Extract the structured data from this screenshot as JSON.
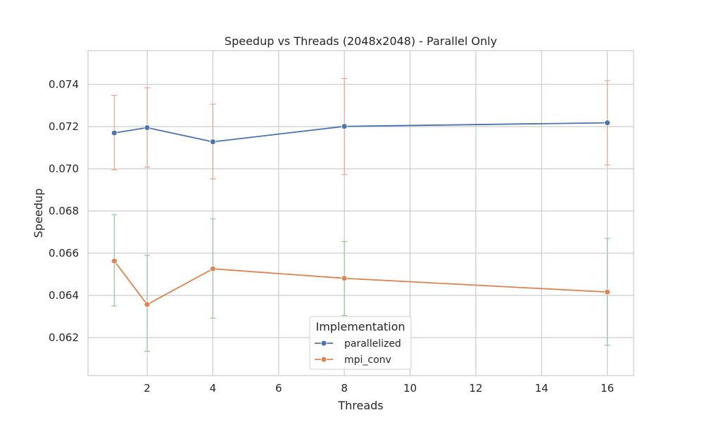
{
  "chart_data": {
    "type": "line",
    "title": "Speedup vs Threads (2048x2048) - Parallel Only",
    "xlabel": "Threads",
    "ylabel": "Speedup",
    "x": [
      1,
      2,
      4,
      8,
      16
    ],
    "xlim": [
      0.2,
      16.8
    ],
    "ylim": [
      0.0602,
      0.0756
    ],
    "xticks": [
      2,
      4,
      6,
      8,
      10,
      12,
      14,
      16
    ],
    "yticks": [
      0.062,
      0.064,
      0.066,
      0.068,
      0.07,
      0.072,
      0.074
    ],
    "ytick_labels": [
      "0.062",
      "0.064",
      "0.066",
      "0.068",
      "0.070",
      "0.072",
      "0.074"
    ],
    "grid": true,
    "legend": {
      "title": "Implementation",
      "position": "bottom-center"
    },
    "series": [
      {
        "name": "parallelized",
        "color": "#4c72b0",
        "values": [
          0.0717,
          0.07195,
          0.07128,
          0.07201,
          0.07218
        ],
        "error_color": "#e9a58e",
        "error_low": [
          0.06995,
          0.07008,
          0.06952,
          0.06973,
          0.07018
        ],
        "error_high": [
          0.07348,
          0.07384,
          0.07306,
          0.07428,
          0.07417
        ]
      },
      {
        "name": "mpi_conv",
        "color": "#dd8452",
        "values": [
          0.06563,
          0.06357,
          0.06526,
          0.06481,
          0.06416
        ],
        "error_color": "#8fc79b",
        "error_low": [
          0.0635,
          0.06135,
          0.06292,
          0.06305,
          0.06164
        ],
        "error_high": [
          0.06783,
          0.0659,
          0.06763,
          0.06655,
          0.0667
        ]
      }
    ]
  }
}
